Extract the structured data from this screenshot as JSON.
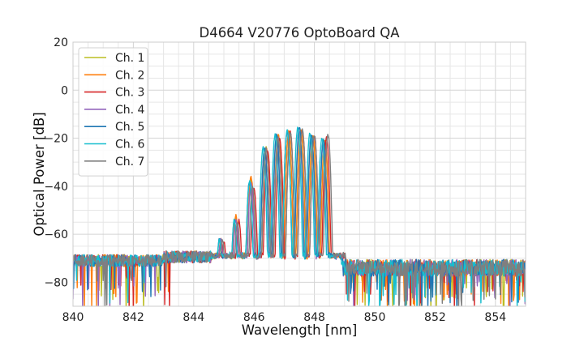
{
  "chart_data": {
    "type": "line",
    "title": "D4664 V20776 OptoBoard QA",
    "xlabel": "Wavelength [nm]",
    "ylabel": "Optical Power [dB]",
    "xlim": [
      840,
      855
    ],
    "ylim": [
      -90,
      20
    ],
    "xticks": [
      840,
      842,
      844,
      846,
      848,
      850,
      852,
      854
    ],
    "yticks": [
      -80,
      -60,
      -40,
      -20,
      0,
      20
    ],
    "grid": true,
    "legend_position": "top-left",
    "noise_floor_db": -71,
    "series": [
      {
        "name": "Ch. 1",
        "color": "#bcbd22",
        "peaks": [
          [
            844.9,
            -62
          ],
          [
            845.4,
            -53
          ],
          [
            845.9,
            -37
          ],
          [
            846.4,
            -24
          ],
          [
            846.8,
            -19
          ],
          [
            847.15,
            -17.5
          ],
          [
            847.55,
            -16.5
          ],
          [
            847.95,
            -19
          ],
          [
            848.35,
            -21
          ]
        ],
        "edge_nm": 848.6
      },
      {
        "name": "Ch. 2",
        "color": "#ff7f0e",
        "peaks": [
          [
            844.9,
            -62
          ],
          [
            845.4,
            -52
          ],
          [
            845.9,
            -36
          ],
          [
            846.4,
            -23.5
          ],
          [
            846.8,
            -18
          ],
          [
            847.15,
            -17
          ],
          [
            847.55,
            -16
          ],
          [
            847.95,
            -18.5
          ],
          [
            848.35,
            -20.5
          ]
        ],
        "edge_nm": 848.6
      },
      {
        "name": "Ch. 3",
        "color": "#d62728",
        "peaks": [
          [
            845.0,
            -63
          ],
          [
            845.5,
            -54
          ],
          [
            846.0,
            -41
          ],
          [
            846.45,
            -25
          ],
          [
            846.85,
            -20
          ],
          [
            847.2,
            -17.5
          ],
          [
            847.6,
            -16.5
          ],
          [
            848.0,
            -19
          ],
          [
            848.4,
            -20
          ]
        ],
        "edge_nm": 848.7
      },
      {
        "name": "Ch. 4",
        "color": "#9467bd",
        "peaks": [
          [
            844.9,
            -62
          ],
          [
            845.4,
            -54
          ],
          [
            845.9,
            -39
          ],
          [
            846.35,
            -24
          ],
          [
            846.75,
            -19
          ],
          [
            847.1,
            -17.5
          ],
          [
            847.5,
            -17
          ],
          [
            847.9,
            -19.5
          ],
          [
            848.3,
            -21
          ]
        ],
        "edge_nm": 848.6
      },
      {
        "name": "Ch. 5",
        "color": "#1f77b4",
        "peaks": [
          [
            844.85,
            -62
          ],
          [
            845.35,
            -54
          ],
          [
            845.85,
            -38
          ],
          [
            846.35,
            -24.5
          ],
          [
            846.75,
            -18.5
          ],
          [
            847.1,
            -17
          ],
          [
            847.5,
            -15.5
          ],
          [
            847.9,
            -18.5
          ],
          [
            848.3,
            -20.5
          ]
        ],
        "edge_nm": 848.6
      },
      {
        "name": "Ch. 6",
        "color": "#17becf",
        "peaks": [
          [
            844.85,
            -62
          ],
          [
            845.35,
            -54
          ],
          [
            845.85,
            -38
          ],
          [
            846.3,
            -24
          ],
          [
            846.7,
            -18.5
          ],
          [
            847.1,
            -17
          ],
          [
            847.45,
            -15.5
          ],
          [
            847.85,
            -18
          ],
          [
            848.25,
            -20
          ]
        ],
        "edge_nm": 848.55
      },
      {
        "name": "Ch. 7",
        "color": "#7f7f7f",
        "peaks": [
          [
            844.95,
            -62
          ],
          [
            845.45,
            -55
          ],
          [
            845.95,
            -40
          ],
          [
            846.4,
            -24.5
          ],
          [
            846.8,
            -20
          ],
          [
            847.2,
            -17.5
          ],
          [
            847.6,
            -16.5
          ],
          [
            848.0,
            -18.5
          ],
          [
            848.45,
            -18.5
          ]
        ],
        "edge_nm": 848.7
      }
    ]
  }
}
